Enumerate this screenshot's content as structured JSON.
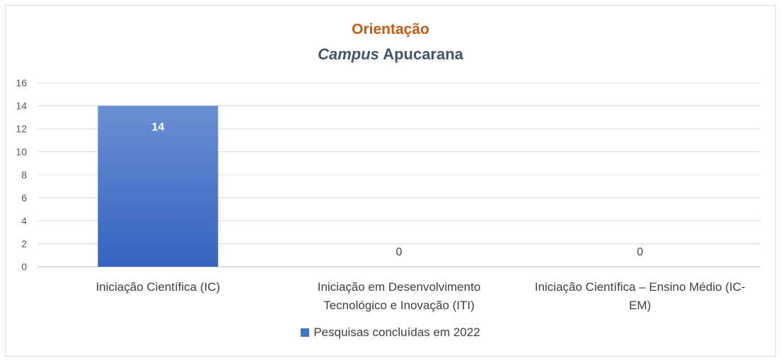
{
  "chart_data": {
    "type": "bar",
    "title": "Orientação",
    "subtitle_italic": "Campus",
    "subtitle_rest": "Apucarana",
    "categories": [
      [
        "Iniciação Científica (IC)"
      ],
      [
        "Iniciação em Desenvolvimento",
        "Tecnológico e Inovação (ITI)"
      ],
      [
        "Iniciação Científica – Ensino Médio (IC-",
        "EM)"
      ]
    ],
    "series": [
      {
        "name": "Pesquisas concluídas em 2022",
        "values": [
          14,
          0,
          0
        ],
        "color": "#4472c4"
      }
    ],
    "ylim": [
      0,
      16
    ],
    "yticks": [
      0,
      2,
      4,
      6,
      8,
      10,
      12,
      14,
      16
    ],
    "grid": true,
    "legend": "bottom"
  }
}
